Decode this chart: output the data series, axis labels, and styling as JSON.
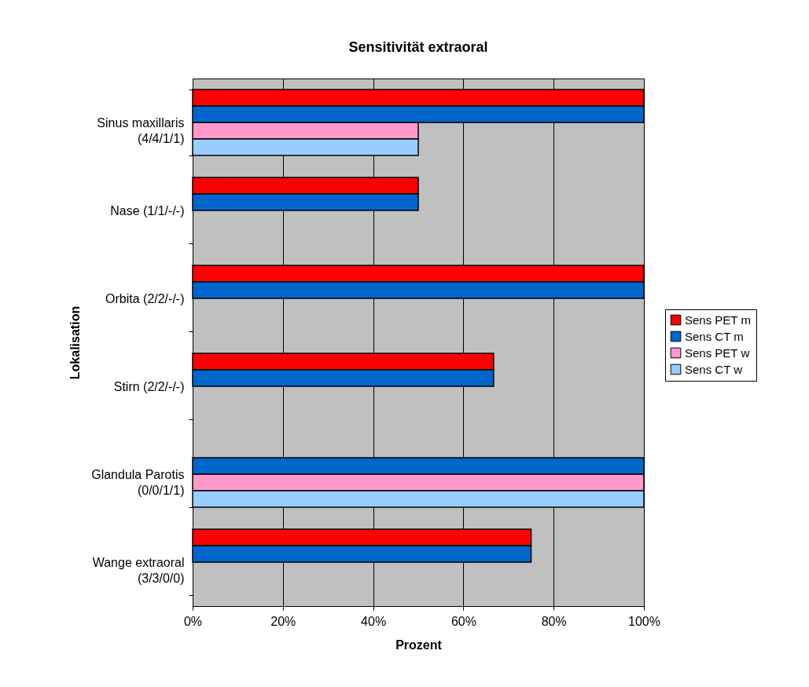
{
  "chart_data": {
    "type": "bar",
    "orientation": "horizontal",
    "title": "Sensitivität extraoral",
    "xlabel": "Prozent",
    "ylabel": "Lokalisation",
    "categories": [
      "Sinus maxillaris\n(4/4/1/1)",
      "Nase (1/1/-/-)",
      "Orbita (2/2/-/-)",
      "Stirn (2/2/-/-)",
      "Glandula Parotis\n(0/0/1/1)",
      "Wange extraoral\n(3/3/0/0)"
    ],
    "series": [
      {
        "name": "Sens PET m",
        "color": "#ff0000",
        "values": [
          100,
          50,
          100,
          66.7,
          null,
          75
        ]
      },
      {
        "name": "Sens CT m",
        "color": "#0066cc",
        "values": [
          100,
          50,
          100,
          66.7,
          100,
          75
        ]
      },
      {
        "name": "Sens PET w",
        "color": "#ff99cc",
        "values": [
          50,
          null,
          null,
          null,
          100,
          null
        ]
      },
      {
        "name": "Sens CT w",
        "color": "#99ccff",
        "values": [
          50,
          null,
          null,
          null,
          100,
          null
        ]
      }
    ],
    "xlim": [
      0,
      100
    ],
    "xticks": [
      {
        "value": 0,
        "label": "0%"
      },
      {
        "value": 20,
        "label": "20%"
      },
      {
        "value": 40,
        "label": "40%"
      },
      {
        "value": 60,
        "label": "60%"
      },
      {
        "value": 80,
        "label": "80%"
      },
      {
        "value": 100,
        "label": "100%"
      }
    ],
    "grid": "x",
    "legend": "right"
  }
}
